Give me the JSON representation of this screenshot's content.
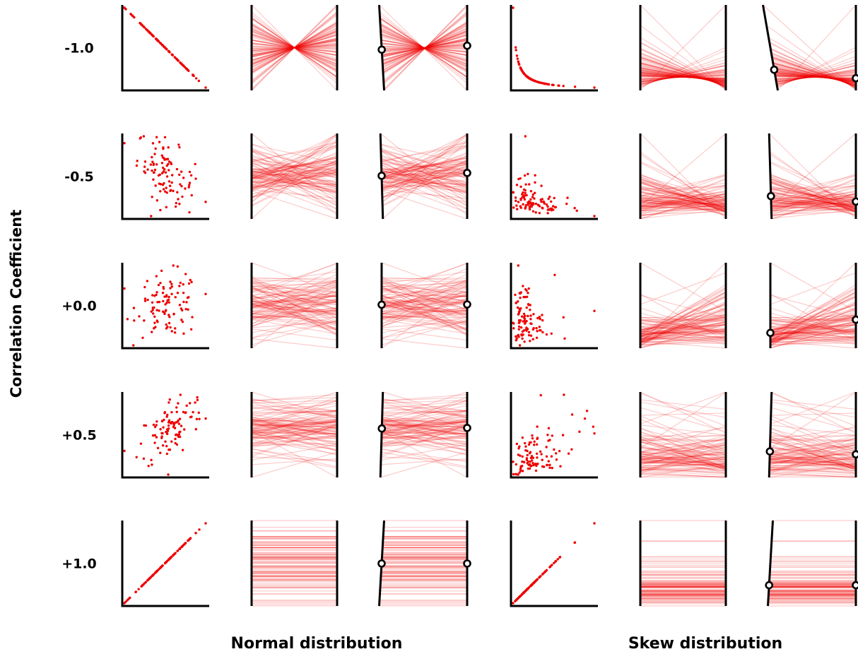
{
  "chart_data": {
    "type": "scatter",
    "title": "",
    "ylabel": "Correlation Coefficient",
    "row_labels": [
      "-1.0",
      "-0.5",
      "+0.0",
      "+0.5",
      "+1.0"
    ],
    "correlations": [
      -1.0,
      -0.5,
      0.0,
      0.5,
      1.0
    ],
    "group_labels": [
      "Normal distribution",
      "Skew distribution"
    ],
    "distributions": [
      "normal",
      "skew"
    ],
    "panel_types": [
      "scatterplot",
      "parallel-coordinates",
      "parallel-coordinates-angled-axis"
    ],
    "n_points": 100,
    "grid": false,
    "legend": "none",
    "colors": {
      "data": "#ee0000",
      "axis": "#000000",
      "background": "#ffffff"
    }
  }
}
